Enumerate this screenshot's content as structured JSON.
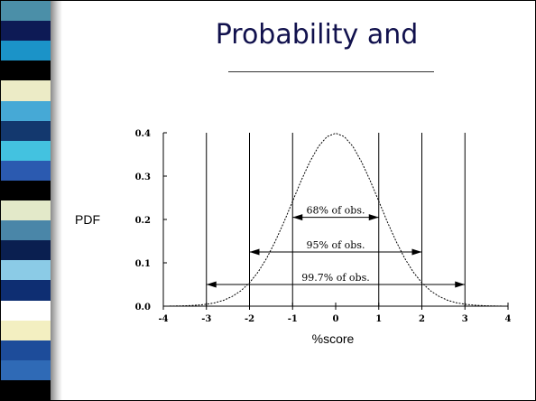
{
  "slide": {
    "title": "Probability and",
    "stripe_colors": [
      "#4b8fa8",
      "#0d1a55",
      "#1b93c8",
      "#000000",
      "#ecebc6",
      "#46a9d6",
      "#13386e",
      "#43c2e0",
      "#2b5ab0",
      "#000000",
      "#e3e9c9",
      "#4a86a8",
      "#0a1f50",
      "#8bcbe6",
      "#0e2e72",
      "#ffffff",
      "#f3efc1",
      "#1d4c9a",
      "#2f6ab6",
      "#000000"
    ]
  },
  "chart_data": {
    "type": "line",
    "xlabel": "%score",
    "ylabel": "PDF",
    "xlim": [
      -4,
      4
    ],
    "ylim": [
      0,
      0.4
    ],
    "x_ticks": [
      "-4",
      "-3",
      "-2",
      "-1",
      "0",
      "1",
      "2",
      "3",
      "4"
    ],
    "y_ticks": [
      "0.0",
      "0.1",
      "0.2",
      "0.3",
      "0.4"
    ],
    "series": [
      {
        "x": [
          -4,
          -3.8,
          -3.6,
          -3.4,
          -3.2,
          -3,
          -2.8,
          -2.6,
          -2.4,
          -2.2,
          -2,
          -1.8,
          -1.6,
          -1.4,
          -1.2,
          -1,
          -0.8,
          -0.6,
          -0.4,
          -0.2,
          0,
          0.2,
          0.4,
          0.6,
          0.8,
          1,
          1.2,
          1.4,
          1.6,
          1.8,
          2,
          2.2,
          2.4,
          2.6,
          2.8,
          3,
          3.2,
          3.4,
          3.6,
          3.8,
          4
        ],
        "y": [
          0.0001,
          0.0003,
          0.0006,
          0.0012,
          0.0024,
          0.0044,
          0.0079,
          0.0136,
          0.0224,
          0.0355,
          0.054,
          0.079,
          0.1109,
          0.1497,
          0.1942,
          0.242,
          0.2897,
          0.3332,
          0.3683,
          0.391,
          0.3989,
          0.391,
          0.3683,
          0.3332,
          0.2897,
          0.242,
          0.1942,
          0.1497,
          0.1109,
          0.079,
          0.054,
          0.0355,
          0.0224,
          0.0136,
          0.0079,
          0.0044,
          0.0024,
          0.0012,
          0.0006,
          0.0003,
          0.0001
        ]
      }
    ],
    "vertical_lines": [
      -3,
      -2,
      -1,
      1,
      2,
      3
    ],
    "annotations": [
      {
        "text": "68% of obs.",
        "from": -1,
        "to": 1,
        "y": 0.205
      },
      {
        "text": "95% of obs.",
        "from": -2,
        "to": 2,
        "y": 0.125
      },
      {
        "text": "99.7% of obs.",
        "from": -3,
        "to": 3,
        "y": 0.05
      }
    ]
  }
}
